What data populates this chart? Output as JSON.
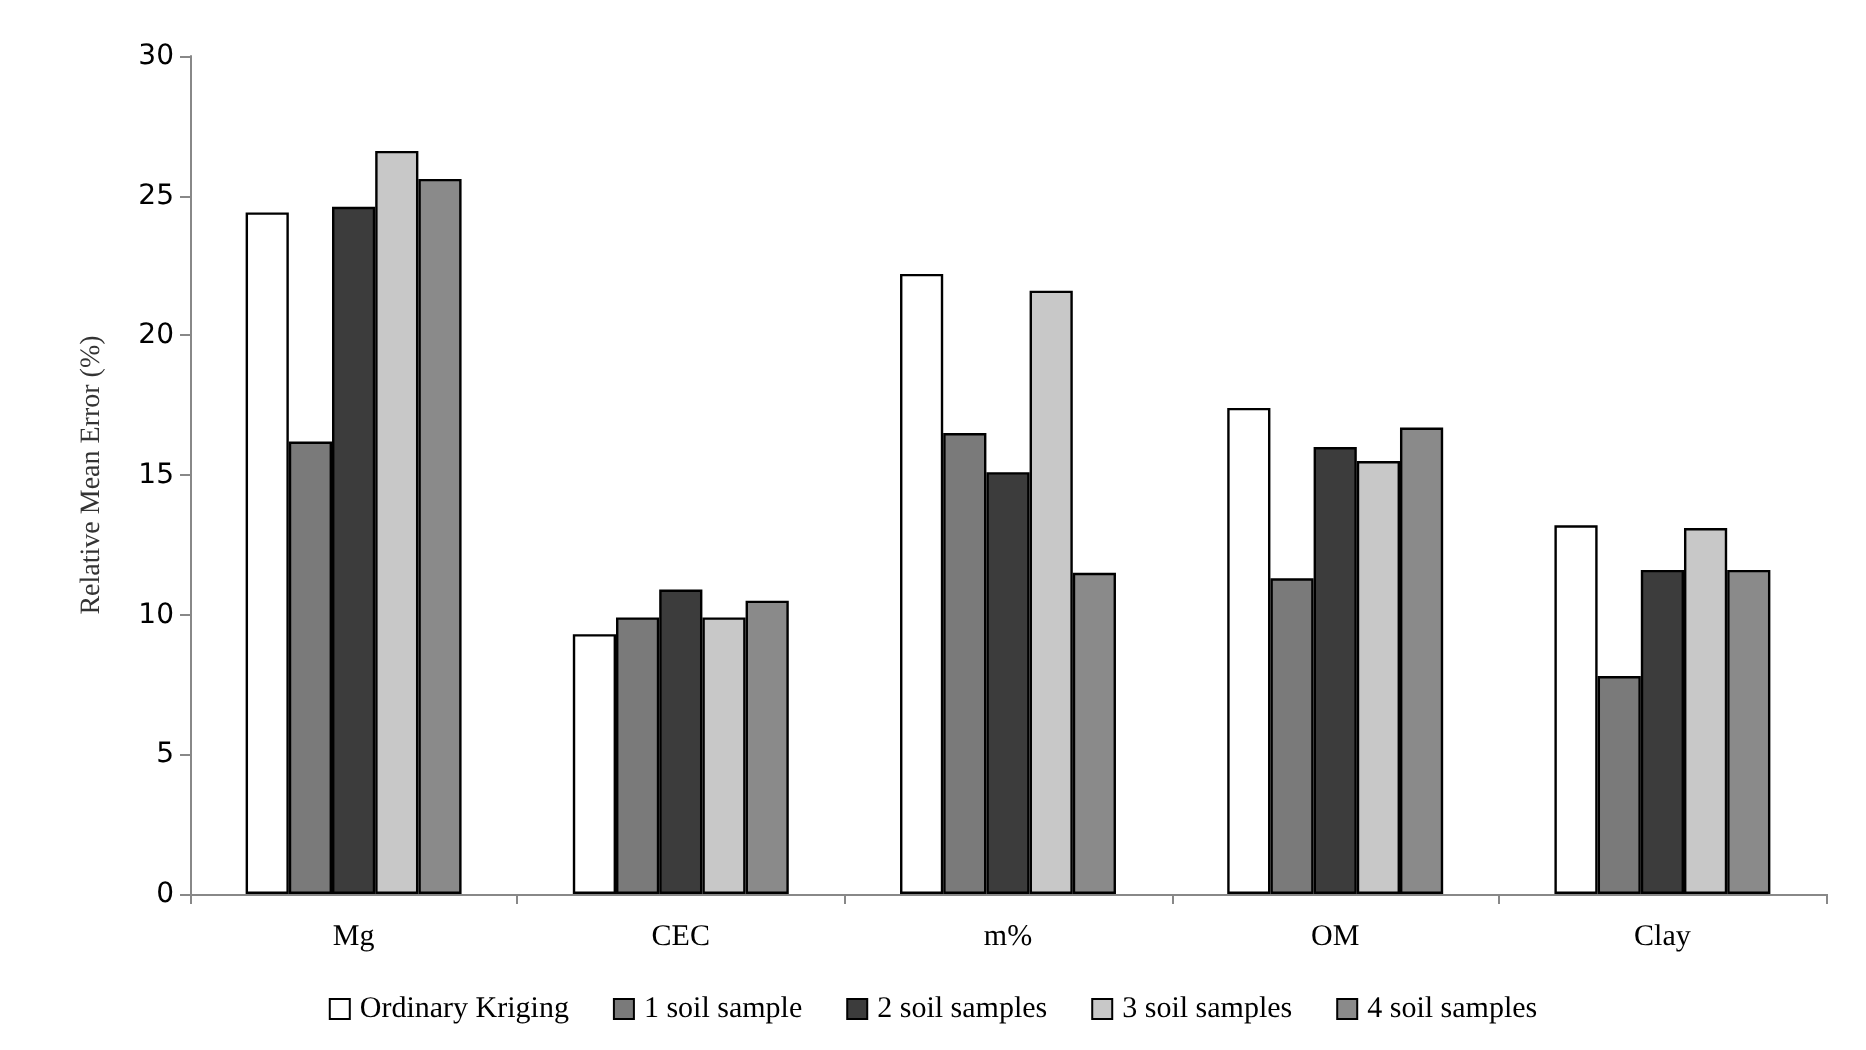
{
  "chart_data": {
    "type": "bar",
    "ylabel": "Relative Mean Error (%)",
    "categories": [
      "Mg",
      "CEC",
      "m%",
      "OM",
      "Clay"
    ],
    "series": [
      {
        "name": "Ordinary Kriging",
        "color": "#ffffff",
        "values": [
          24.4,
          9.3,
          22.2,
          17.4,
          13.2
        ]
      },
      {
        "name": "1 soil sample",
        "color": "#7a7a7a",
        "values": [
          16.2,
          9.9,
          16.5,
          11.3,
          7.8
        ]
      },
      {
        "name": "2 soil samples",
        "color": "#3c3c3c",
        "values": [
          24.6,
          10.9,
          15.1,
          16.0,
          11.6
        ]
      },
      {
        "name": "3 soil samples",
        "color": "#c8c8c8",
        "values": [
          26.6,
          9.9,
          21.6,
          15.5,
          13.1
        ]
      },
      {
        "name": "4 soil samples",
        "color": "#8a8a8a",
        "values": [
          25.6,
          10.5,
          11.5,
          16.7,
          11.6
        ]
      }
    ],
    "ylim": [
      0,
      30
    ],
    "yticks": [
      0,
      5,
      10,
      15,
      20,
      25,
      30
    ],
    "grid": false,
    "legend": "bottom"
  }
}
